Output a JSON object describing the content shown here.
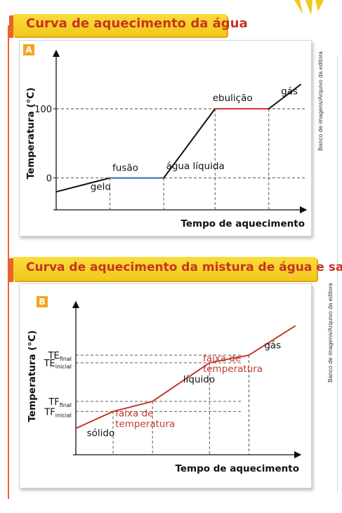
{
  "credits": {
    "a": "Banco de imagens/Arquivo da editora",
    "b": "Banco de imagens/Arquivo da editora"
  },
  "colors": {
    "banner": "#f4d033",
    "banner_text": "#c9331e",
    "badge": "#f4a524",
    "fusion": "#2f6fb5",
    "boiling": "#e02b2b",
    "mixture": "#c0392b"
  },
  "chart_data": [
    {
      "type": "line",
      "id": "A",
      "title": "Curva de aquecimento da água",
      "badge": "A",
      "xlabel": "Tempo de aquecimento",
      "ylabel": "Temperatura (°C)",
      "xlim": [
        0,
        100
      ],
      "ylim": [
        -40,
        170
      ],
      "yticks": [
        {
          "value": 100,
          "label": "100"
        },
        {
          "value": 0,
          "label": "0"
        }
      ],
      "x": [
        0,
        22,
        44,
        65,
        87,
        100
      ],
      "y": [
        -20,
        0,
        0,
        100,
        100,
        135
      ],
      "segment_colors": [
        "#111111",
        "#2f6fb5",
        "#111111",
        "#e02b2b",
        "#111111"
      ],
      "annotations": [
        {
          "text": "gelo",
          "x": 14,
          "y": -17
        },
        {
          "text": "fusão",
          "x": 23,
          "y": 10
        },
        {
          "text": "água líquida",
          "x": 45,
          "y": 13
        },
        {
          "text": "ebulição",
          "x": 64,
          "y": 111
        },
        {
          "text": "gás",
          "x": 92,
          "y": 121
        }
      ]
    },
    {
      "type": "line",
      "id": "B",
      "title": "Curva de aquecimento da mistura de água e sal",
      "badge": "B",
      "xlabel": "Tempo de aquecimento",
      "ylabel": "Temperatura (°C)",
      "xlim": [
        0,
        100
      ],
      "ylim": [
        0,
        100
      ],
      "yticks": [
        {
          "value": 66.8,
          "main": "TE",
          "sub": "final"
        },
        {
          "value": 61.0,
          "main": "TE",
          "sub": "inicial"
        },
        {
          "value": 31.6,
          "main": "TF",
          "sub": "final"
        },
        {
          "value": 23.9,
          "main": "TF",
          "sub": "inicial"
        }
      ],
      "x": [
        0,
        17,
        35,
        61,
        79,
        100
      ],
      "y": [
        11,
        23.9,
        31.6,
        61.0,
        66.8,
        89
      ],
      "line_color": "#c0392b",
      "annotations": [
        {
          "text": "sólido",
          "x": 5,
          "y": 5,
          "color": "#111111"
        },
        {
          "lines": [
            "faixa de",
            "temperatura"
          ],
          "x": 18,
          "y": 20,
          "color": "#c0392b"
        },
        {
          "text": "líquido",
          "x": 49,
          "y": 46,
          "color": "#111111"
        },
        {
          "lines": [
            "faixa de",
            "temperatura"
          ],
          "x": 58,
          "y": 62,
          "color": "#c0392b"
        },
        {
          "text": "gás",
          "x": 86,
          "y": 72,
          "color": "#111111"
        }
      ]
    }
  ]
}
